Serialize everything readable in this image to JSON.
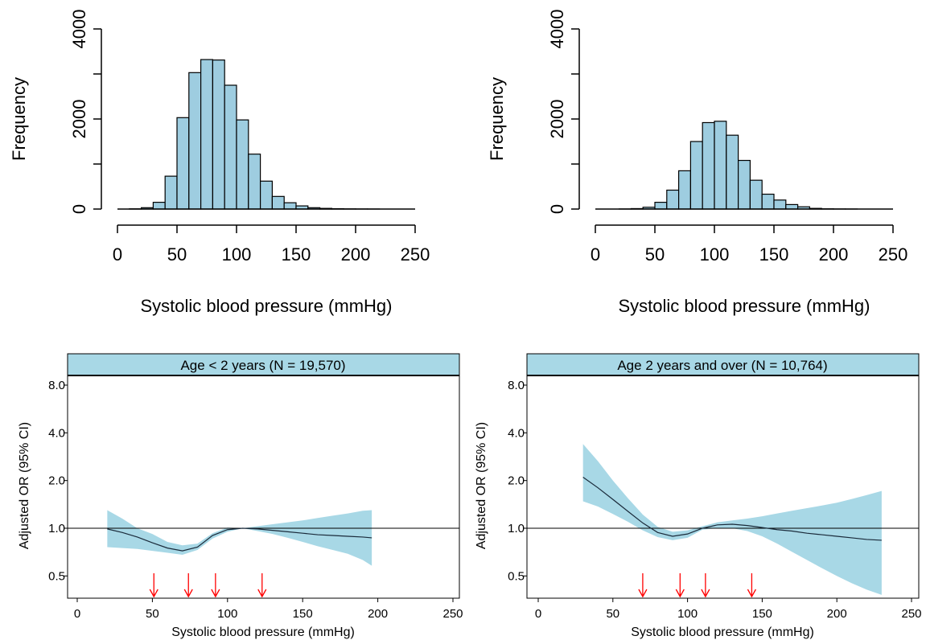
{
  "chart_data": [
    {
      "id": "hist1",
      "type": "bar",
      "bin_width": 10,
      "bins_start": [
        10,
        20,
        30,
        40,
        50,
        60,
        70,
        80,
        90,
        100,
        110,
        120,
        130,
        140,
        150,
        160,
        170,
        180,
        190,
        200,
        210,
        220,
        230,
        240
      ],
      "values": [
        5,
        30,
        150,
        730,
        2030,
        3030,
        3320,
        3310,
        2750,
        1980,
        1220,
        620,
        280,
        140,
        70,
        30,
        15,
        8,
        4,
        2,
        1,
        0,
        0,
        0
      ],
      "xlabel": "Systolic blood pressure (mmHg)",
      "ylabel": "Frequency",
      "xlim": [
        0,
        250
      ],
      "ylim": [
        0,
        4000
      ],
      "x_ticks": [
        "0",
        "50",
        "100",
        "150",
        "200",
        "250"
      ],
      "y_ticks": [
        "0",
        "2000",
        "4000"
      ],
      "bar_color": "#9ecde0"
    },
    {
      "id": "hist2",
      "type": "bar",
      "bin_width": 10,
      "bins_start": [
        20,
        30,
        40,
        50,
        60,
        70,
        80,
        90,
        100,
        110,
        120,
        130,
        140,
        150,
        160,
        170,
        180,
        190,
        200,
        210,
        220,
        230,
        240
      ],
      "values": [
        2,
        10,
        40,
        150,
        420,
        850,
        1500,
        1920,
        1950,
        1640,
        1080,
        640,
        330,
        200,
        100,
        50,
        15,
        5,
        2,
        1,
        0,
        0,
        0
      ],
      "xlabel": "Systolic blood pressure (mmHg)",
      "ylabel": "Frequency",
      "xlim": [
        0,
        250
      ],
      "ylim": [
        0,
        4000
      ],
      "x_ticks": [
        "0",
        "50",
        "100",
        "150",
        "200",
        "250"
      ],
      "y_ticks": [
        "0",
        "2000",
        "4000"
      ],
      "bar_color": "#9ecde0"
    },
    {
      "id": "or1",
      "type": "line",
      "title": "Age < 2 years (N = 19,570)",
      "xlabel": "Systolic blood pressure (mmHg)",
      "ylabel": "Adjusted OR (95% CI)",
      "xlim": [
        0,
        250
      ],
      "ylim_log": [
        0.5,
        8.0
      ],
      "x_ticks": [
        "0",
        "50",
        "100",
        "150",
        "200",
        "250"
      ],
      "y_ticks": [
        "0.5",
        "1.0",
        "2.0",
        "4.0",
        "8.0"
      ],
      "reference_line": 1.0,
      "x": [
        20,
        30,
        40,
        50,
        60,
        70,
        80,
        90,
        100,
        110,
        120,
        130,
        140,
        150,
        160,
        170,
        180,
        190,
        196
      ],
      "y": [
        0.99,
        0.94,
        0.88,
        0.81,
        0.75,
        0.72,
        0.76,
        0.9,
        0.98,
        1.0,
        0.99,
        0.97,
        0.95,
        0.93,
        0.91,
        0.9,
        0.89,
        0.88,
        0.87
      ],
      "lower": [
        0.76,
        0.75,
        0.74,
        0.72,
        0.7,
        0.68,
        0.73,
        0.86,
        0.95,
        1.0,
        0.96,
        0.92,
        0.87,
        0.82,
        0.77,
        0.73,
        0.69,
        0.63,
        0.58
      ],
      "upper": [
        1.3,
        1.15,
        1.0,
        0.92,
        0.82,
        0.78,
        0.8,
        0.93,
        1.01,
        1.0,
        1.03,
        1.06,
        1.09,
        1.12,
        1.16,
        1.2,
        1.24,
        1.29,
        1.3
      ],
      "arrows_x": [
        51,
        74,
        92,
        123
      ],
      "band_color": "#a8d8e6",
      "arrow_color": "#ff0000"
    },
    {
      "id": "or2",
      "type": "line",
      "title": "Age 2 years and over (N = 10,764)",
      "xlabel": "Systolic blood pressure (mmHg)",
      "ylabel": "Adjusted OR (95% CI)",
      "xlim": [
        0,
        250
      ],
      "ylim_log": [
        0.5,
        8.0
      ],
      "x_ticks": [
        "0",
        "50",
        "100",
        "150",
        "200",
        "250"
      ],
      "y_ticks": [
        "0.5",
        "1.0",
        "2.0",
        "4.0",
        "8.0"
      ],
      "reference_line": 1.0,
      "x": [
        30,
        40,
        50,
        60,
        70,
        80,
        90,
        100,
        110,
        120,
        130,
        140,
        150,
        160,
        170,
        180,
        190,
        200,
        210,
        220,
        230
      ],
      "y": [
        2.1,
        1.8,
        1.52,
        1.28,
        1.08,
        0.94,
        0.89,
        0.92,
        1.0,
        1.05,
        1.06,
        1.04,
        1.01,
        0.98,
        0.96,
        0.93,
        0.91,
        0.89,
        0.87,
        0.85,
        0.84
      ],
      "lower": [
        1.48,
        1.37,
        1.23,
        1.1,
        0.97,
        0.88,
        0.84,
        0.87,
        0.98,
        1.0,
        1.0,
        0.96,
        0.89,
        0.8,
        0.71,
        0.63,
        0.56,
        0.5,
        0.45,
        0.41,
        0.38
      ],
      "upper": [
        3.4,
        2.65,
        2.0,
        1.55,
        1.22,
        1.02,
        0.95,
        0.97,
        1.03,
        1.09,
        1.12,
        1.15,
        1.19,
        1.24,
        1.29,
        1.34,
        1.39,
        1.45,
        1.53,
        1.62,
        1.72
      ],
      "arrows_x": [
        70,
        95,
        112,
        143
      ],
      "band_color": "#a8d8e6",
      "arrow_color": "#ff0000"
    }
  ]
}
